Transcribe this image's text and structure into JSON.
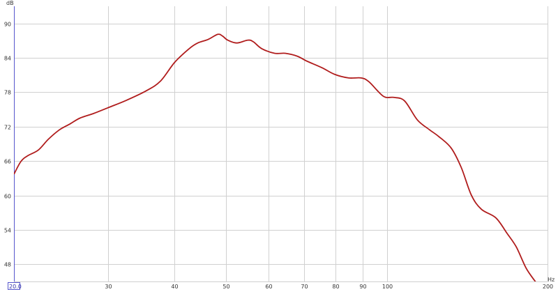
{
  "chart_data": {
    "type": "line",
    "title": "",
    "xlabel": "Hz",
    "ylabel": "dB",
    "xscale": "log",
    "xlim": [
      20,
      200
    ],
    "ylim": [
      45,
      93
    ],
    "grid": true,
    "x_start_label": "20.0",
    "x_ticks": [
      30,
      40,
      50,
      60,
      70,
      80,
      90,
      100,
      200
    ],
    "x_tick_labels": [
      "30",
      "40",
      "50",
      "60",
      "70",
      "80",
      "90",
      "100",
      "200"
    ],
    "y_ticks": [
      90,
      84,
      78,
      72,
      66,
      60,
      54,
      48
    ],
    "y_tick_labels": [
      "90",
      "84",
      "78",
      "72",
      "66",
      "60",
      "54",
      "48"
    ],
    "colors": {
      "curve": "#b01c1c",
      "axis": "#5555cc",
      "grid": "#d0d0d0"
    },
    "series": [
      {
        "x": [
          20,
          20.6,
          21.2,
          22.2,
          23.2,
          24.3,
          25.5,
          26.6,
          28.2,
          30,
          32.3,
          35.3,
          37.6,
          40,
          42.6,
          44.2,
          46.2,
          48.2,
          49.2,
          50.3,
          52.3,
          54.9,
          56.2,
          58.3,
          61.6,
          64.5,
          67.9,
          70.9,
          75.5,
          79.9,
          84.8,
          89.5,
          92.6,
          98.5,
          103,
          107.9,
          114,
          120,
          125,
          131.9,
          137.8,
          143.9,
          150.3,
          160,
          167.9,
          174.8,
          182.4,
          190
        ],
        "y": [
          63.7,
          65.9,
          66.9,
          67.9,
          69.8,
          71.4,
          72.5,
          73.5,
          74.3,
          75.3,
          76.5,
          78.2,
          79.9,
          83.2,
          85.6,
          86.6,
          87.2,
          88.1,
          87.8,
          87.1,
          86.6,
          87.1,
          86.8,
          85.6,
          84.8,
          84.8,
          84.3,
          83.4,
          82.3,
          81.1,
          80.5,
          80.5,
          79.8,
          77.3,
          77.1,
          76.5,
          73.2,
          71.5,
          70.3,
          68.3,
          64.9,
          60.1,
          57.6,
          56.1,
          53.4,
          51.0,
          47.3,
          44.9
        ]
      }
    ]
  }
}
